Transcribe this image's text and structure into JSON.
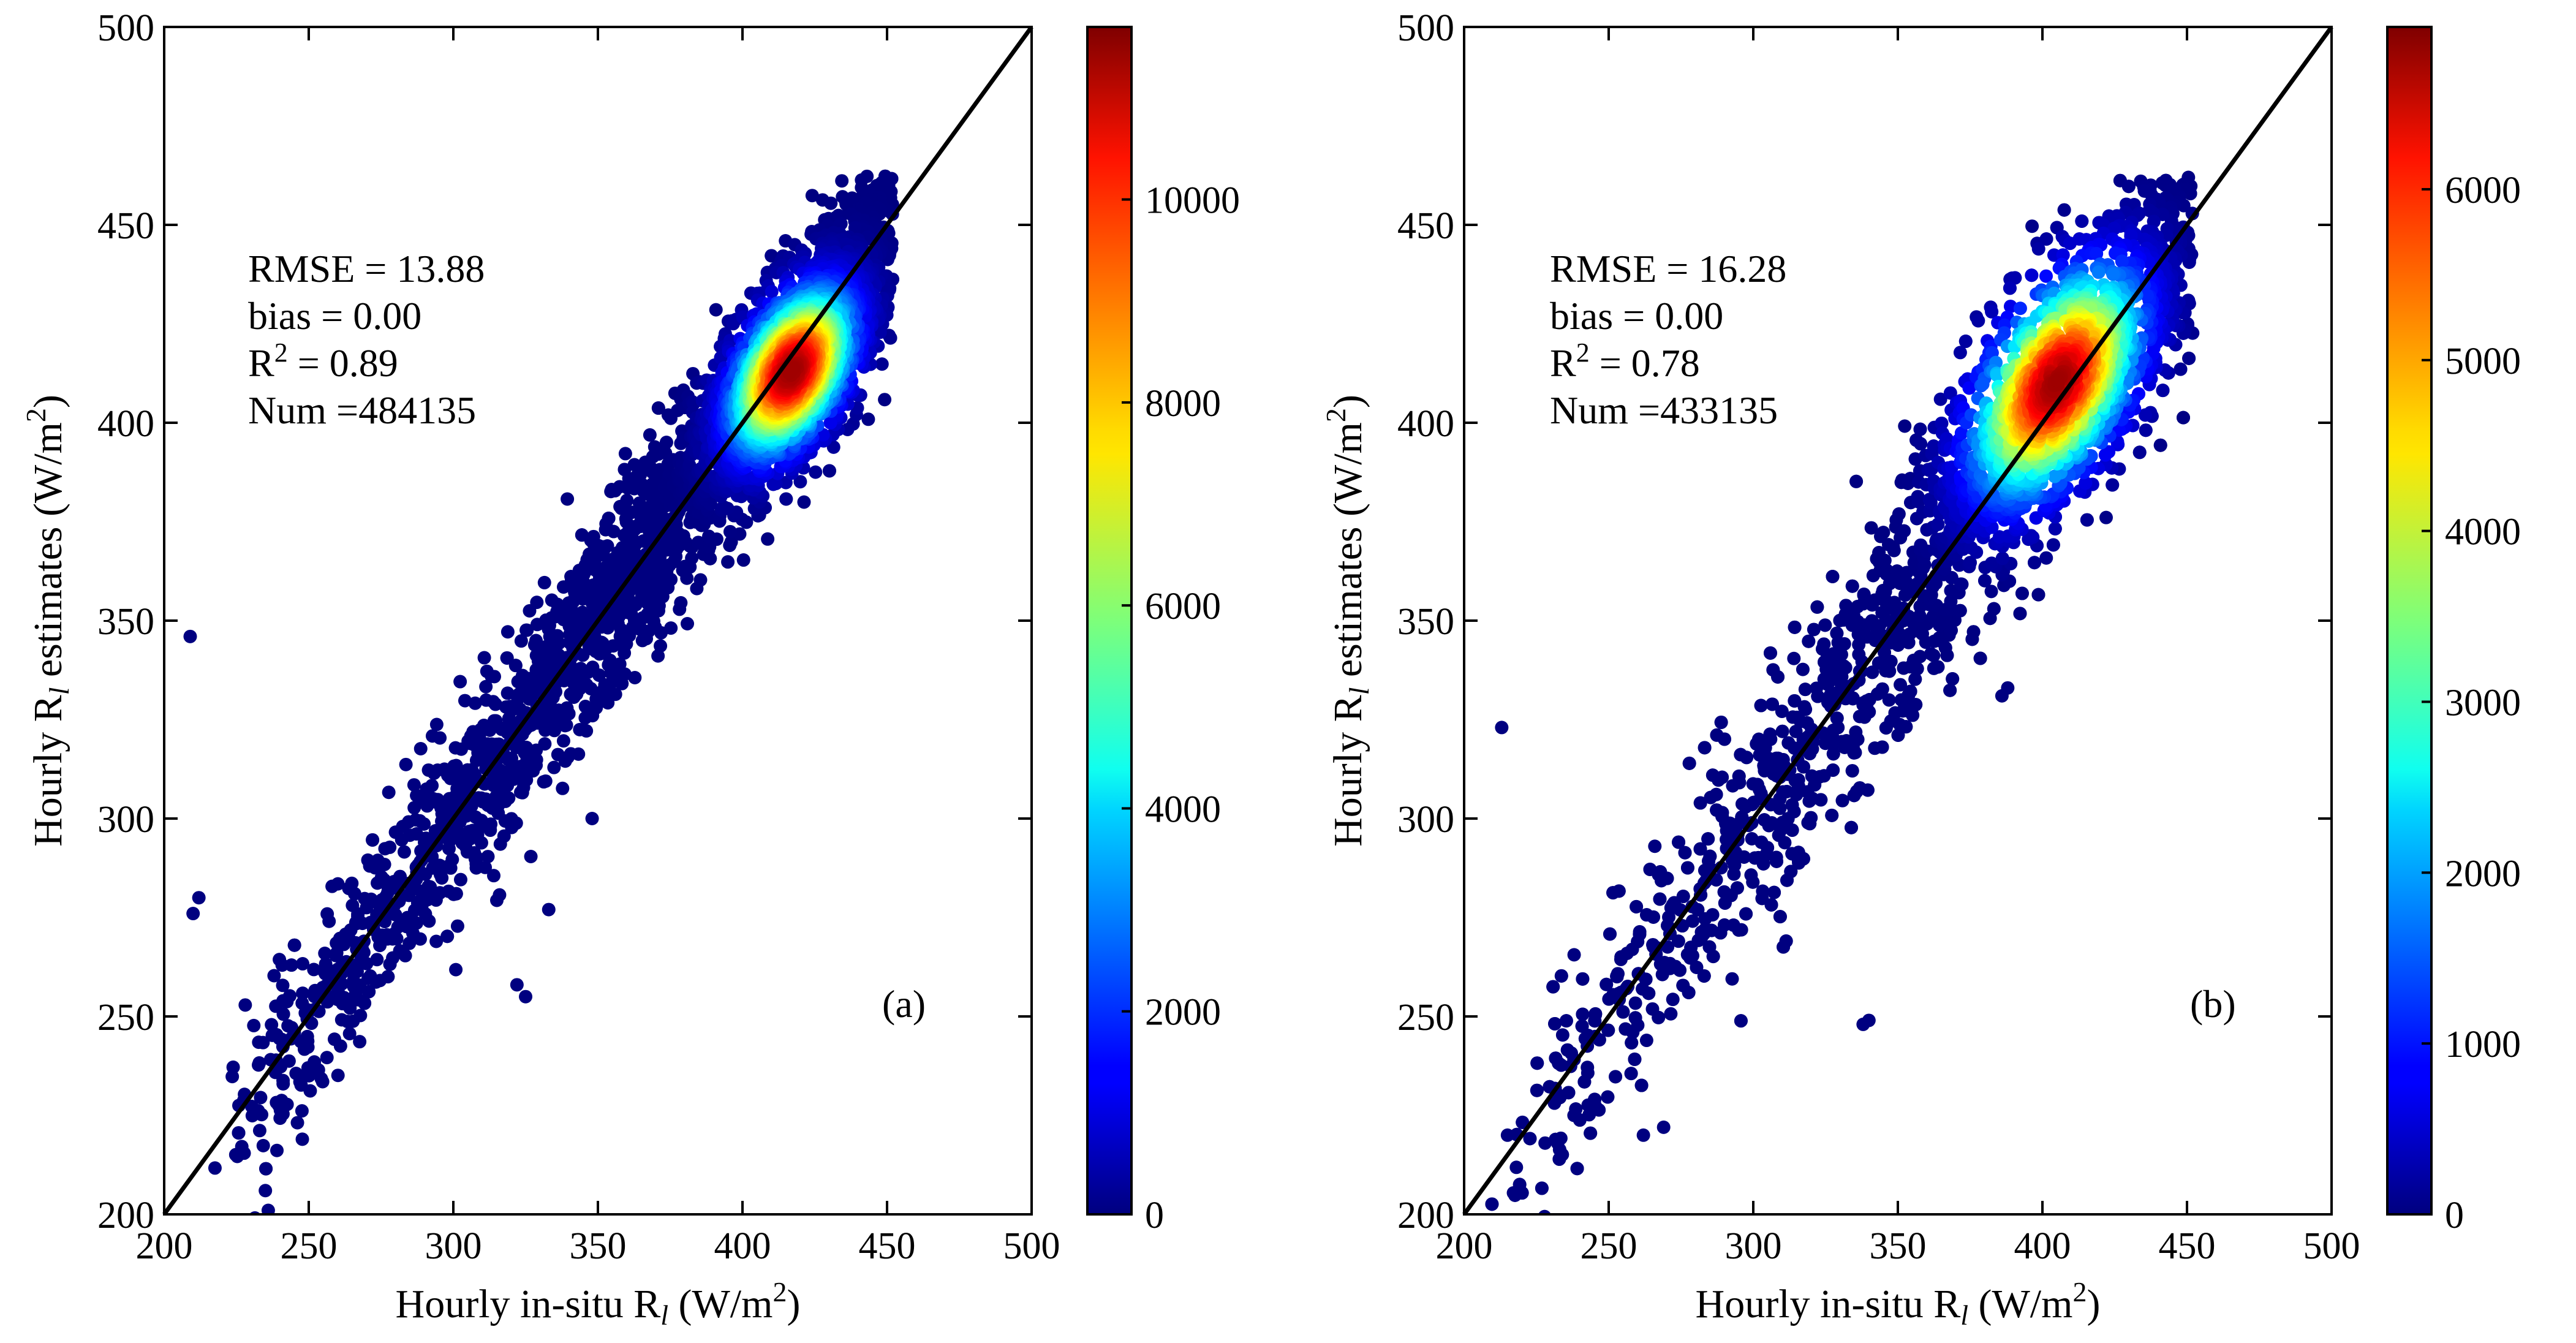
{
  "figure": {
    "background": "#ffffff"
  },
  "chart_data": [
    {
      "type": "scatter",
      "panel_label": "(a)",
      "xlabel": "Hourly in-situ R",
      "xlabel_sub": "l",
      "xlabel_unit": " (W/m",
      "xlabel_sup": "2",
      "xlabel_close": ")",
      "ylabel": "Hourly R",
      "ylabel_sub": "l",
      "ylabel_mid": " estimates (W/m",
      "ylabel_sup": "2",
      "ylabel_close": ")",
      "xlim": [
        200,
        500
      ],
      "ylim": [
        200,
        500
      ],
      "xticks": [
        200,
        250,
        300,
        350,
        400,
        450,
        500
      ],
      "yticks": [
        200,
        250,
        300,
        350,
        400,
        450,
        500
      ],
      "one_to_one_line": [
        [
          200,
          200
        ],
        [
          500,
          500
        ]
      ],
      "stats": {
        "rmse": "RMSE = 13.88",
        "bias": "bias = 0.00",
        "r2_label": "R",
        "r2_sup": "2",
        "r2_value": " = 0.89",
        "num": "Num =484135"
      },
      "density_model": {
        "center": [
          417,
          413
        ],
        "spread_along": 10,
        "spread_across": 6,
        "peak": 11500
      },
      "colorbar": {
        "min": 0,
        "max": 11700,
        "ticks": [
          0,
          2000,
          4000,
          6000,
          8000,
          10000
        ],
        "colormap": "jet"
      },
      "point_cloud": {
        "x_range": [
          208,
          452
        ],
        "y_max_clip": 463,
        "outliers": [
          [
            209,
            346
          ],
          [
            212,
            280
          ],
          [
            210,
            276
          ],
          [
            235,
            206
          ],
          [
            236,
            201
          ],
          [
            325,
            255
          ],
          [
            322,
            258
          ],
          [
            333,
            277
          ],
          [
            348,
            300
          ]
        ]
      }
    },
    {
      "type": "scatter",
      "panel_label": "(b)",
      "xlabel": "Hourly in-situ R",
      "xlabel_sub": "l",
      "xlabel_unit": " (W/m",
      "xlabel_sup": "2",
      "xlabel_close": ")",
      "ylabel": "Hourly R",
      "ylabel_sub": "l",
      "ylabel_mid": " estimates (W/m",
      "ylabel_sup": "2",
      "ylabel_close": ")",
      "xlim": [
        200,
        500
      ],
      "ylim": [
        200,
        500
      ],
      "xticks": [
        200,
        250,
        300,
        350,
        400,
        450,
        500
      ],
      "yticks": [
        200,
        250,
        300,
        350,
        400,
        450,
        500
      ],
      "one_to_one_line": [
        [
          200,
          200
        ],
        [
          500,
          500
        ]
      ],
      "stats": {
        "rmse": "RMSE = 16.28",
        "bias": "bias = 0.00",
        "r2_label": "R",
        "r2_sup": "2",
        "r2_value": " = 0.78",
        "num": "Num =433135"
      },
      "density_model": {
        "center": [
          405,
          410
        ],
        "spread_along": 14,
        "spread_across": 8,
        "peak": 6800
      },
      "colorbar": {
        "min": 0,
        "max": 6950,
        "ticks": [
          0,
          1000,
          2000,
          3000,
          4000,
          5000,
          6000
        ],
        "colormap": "jet"
      },
      "point_cloud": {
        "x_range": [
          200,
          452
        ],
        "y_max_clip": 462,
        "outliers": [
          [
            213,
            323
          ],
          [
            228,
            218
          ],
          [
            215,
            220
          ],
          [
            233,
            230
          ],
          [
            238,
            225
          ],
          [
            262,
            220
          ],
          [
            269,
            222
          ],
          [
            338,
            248
          ],
          [
            340,
            249
          ],
          [
            388,
            333
          ],
          [
            386,
            331
          ]
        ]
      }
    }
  ]
}
